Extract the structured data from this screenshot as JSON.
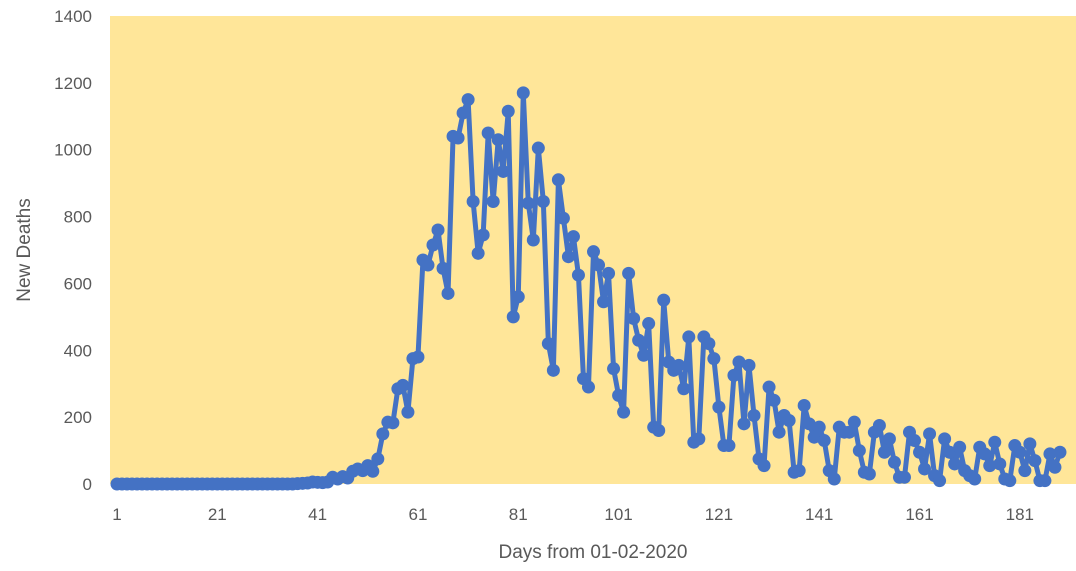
{
  "chart_data": {
    "type": "line",
    "title": "",
    "xlabel": "Days from 01-02-2020",
    "ylabel": "New Deaths",
    "xlim": [
      1,
      191
    ],
    "ylim": [
      0,
      1400
    ],
    "grid": false,
    "legend": "none",
    "colors": {
      "series": "#4472C4",
      "plot_background": "#FFE699"
    },
    "x_ticks": [
      1,
      21,
      41,
      61,
      81,
      101,
      121,
      141,
      161,
      181
    ],
    "y_ticks": [
      0,
      200,
      400,
      600,
      800,
      1000,
      1200,
      1400
    ],
    "series": [
      {
        "x_start": 1,
        "values": [
          0,
          0,
          0,
          0,
          0,
          0,
          0,
          0,
          0,
          0,
          0,
          0,
          0,
          0,
          0,
          0,
          0,
          0,
          0,
          0,
          0,
          0,
          0,
          0,
          0,
          0,
          0,
          0,
          0,
          0,
          0,
          0,
          0,
          0,
          0,
          0,
          1,
          2,
          3,
          6,
          5,
          4,
          6,
          20,
          15,
          22,
          18,
          38,
          45,
          40,
          55,
          38,
          75,
          150,
          185,
          183,
          285,
          295,
          215,
          375,
          380,
          670,
          655,
          715,
          760,
          645,
          570,
          1040,
          1035,
          1110,
          1150,
          845,
          690,
          745,
          1050,
          845,
          1030,
          935,
          1115,
          500,
          560,
          1170,
          840,
          730,
          1005,
          845,
          420,
          340,
          910,
          795,
          680,
          740,
          625,
          315,
          290,
          695,
          655,
          545,
          630,
          345,
          265,
          215,
          630,
          495,
          430,
          385,
          480,
          170,
          160,
          550,
          365,
          340,
          355,
          285,
          440,
          125,
          135,
          440,
          420,
          375,
          230,
          115,
          115,
          325,
          365,
          180,
          355,
          205,
          75,
          55,
          290,
          250,
          155,
          205,
          190,
          35,
          40,
          235,
          180,
          140,
          170,
          130,
          40,
          15,
          170,
          155,
          155,
          185,
          100,
          35,
          30,
          155,
          175,
          95,
          135,
          65,
          20,
          20,
          155,
          130,
          95,
          45,
          150,
          25,
          10,
          135,
          95,
          60,
          110,
          40,
          25,
          15,
          110,
          90,
          55,
          125,
          60,
          15,
          10,
          115,
          95,
          40,
          120,
          70,
          10,
          10,
          90,
          50,
          95
        ]
      }
    ]
  }
}
